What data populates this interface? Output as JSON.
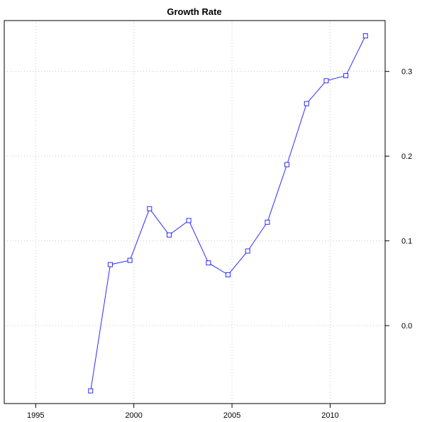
{
  "chart_data": {
    "type": "line",
    "title": "Growth Rate",
    "xlabel": "",
    "ylabel": "",
    "x_ticks": [
      1995,
      2000,
      2005,
      2010
    ],
    "x_tick_labels": [
      "1995",
      "2000",
      "2005",
      "2010"
    ],
    "y_ticks": [
      0.0,
      0.1,
      0.2,
      0.3
    ],
    "y_tick_labels": [
      "0.0",
      "0.1",
      "0.2",
      "0.3"
    ],
    "xlim": [
      1993.4,
      2012.8
    ],
    "ylim": [
      -0.092,
      0.36
    ],
    "grid": true,
    "y_axis_side": "right",
    "marker": "open-square",
    "line_color": "#2b2bff",
    "grid_color": "#c8c8c8",
    "series": [
      {
        "x": [
          1997.8,
          1998.8,
          1999.8,
          2000.8,
          2001.8,
          2002.8,
          2003.8,
          2004.8,
          2005.8,
          2006.8,
          2007.8,
          2008.8,
          2009.8,
          2010.8,
          2011.8
        ],
        "values": [
          -0.077,
          0.072,
          0.077,
          0.138,
          0.107,
          0.124,
          0.074,
          0.06,
          0.088,
          0.122,
          0.19,
          0.262,
          0.289,
          0.295,
          0.342
        ]
      }
    ]
  }
}
